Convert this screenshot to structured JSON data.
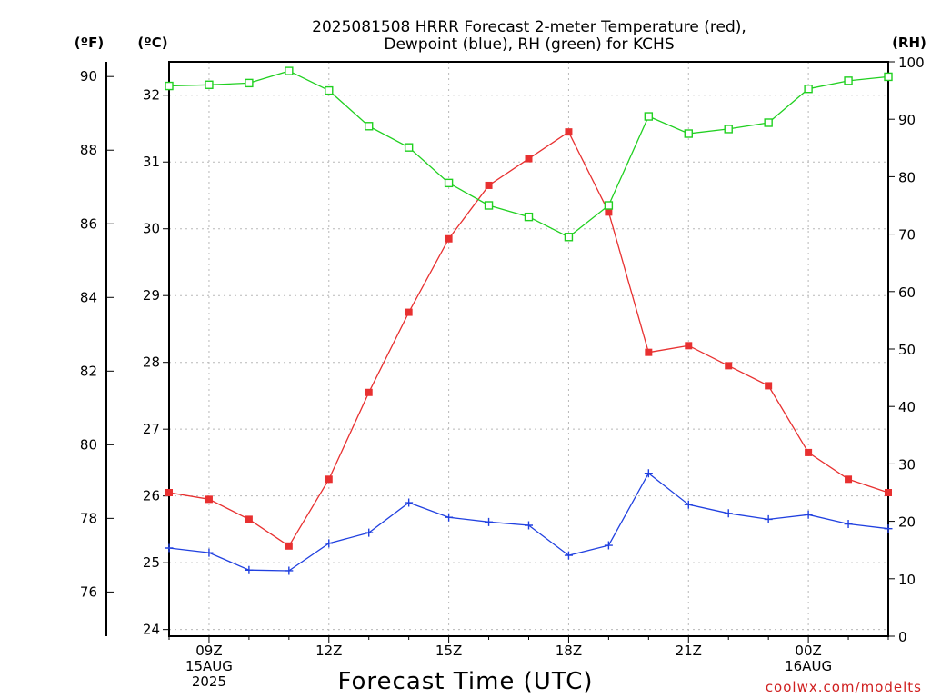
{
  "chart_data": {
    "type": "line",
    "title_lines": [
      "2025081508 HRRR Forecast 2-meter Temperature (red),",
      "Dewpoint (blue), RH (green) for KCHS"
    ],
    "xlabel": "Forecast Time (UTC)",
    "credit": "coolwx.com/modelts",
    "units": {
      "fahrenheit": "(ºF)",
      "celsius": "(ºC)",
      "rh": "(RH)"
    },
    "x": [
      "08Z",
      "09Z",
      "10Z",
      "11Z",
      "12Z",
      "13Z",
      "14Z",
      "15Z",
      "16Z",
      "17Z",
      "18Z",
      "19Z",
      "20Z",
      "21Z",
      "22Z",
      "23Z",
      "00Z",
      "01Z",
      "02Z"
    ],
    "x_tick_labels": [
      {
        "index": 1,
        "lines": [
          "09Z",
          "15AUG",
          "2025"
        ]
      },
      {
        "index": 4,
        "lines": [
          "12Z"
        ]
      },
      {
        "index": 7,
        "lines": [
          "15Z"
        ]
      },
      {
        "index": 10,
        "lines": [
          "18Z"
        ]
      },
      {
        "index": 13,
        "lines": [
          "21Z"
        ]
      },
      {
        "index": 16,
        "lines": [
          "00Z",
          "16AUG"
        ]
      }
    ],
    "y_left_outer": {
      "label": "(ºF)",
      "ticks": [
        "76",
        "78",
        "80",
        "82",
        "84",
        "86",
        "88",
        "90"
      ],
      "range": [
        74.8,
        90.4
      ]
    },
    "y_left_inner": {
      "label": "(ºC)",
      "ticks": [
        "24",
        "25",
        "26",
        "27",
        "28",
        "29",
        "30",
        "31",
        "32"
      ],
      "range": [
        23.9,
        32.5
      ]
    },
    "y_right": {
      "label": "(RH)",
      "ticks": [
        "0",
        "10",
        "20",
        "30",
        "40",
        "50",
        "60",
        "70",
        "80",
        "90",
        "100"
      ],
      "range": [
        0,
        100
      ]
    },
    "grid": true,
    "series": [
      {
        "name": "Temperature",
        "unit": "ºC",
        "axis": "celsius",
        "color": "#e83030",
        "marker": "filled-square",
        "values": [
          26.05,
          25.95,
          25.65,
          25.25,
          26.25,
          27.55,
          28.75,
          29.85,
          30.65,
          31.05,
          31.45,
          30.25,
          28.15,
          28.25,
          27.95,
          27.65,
          26.65,
          26.25,
          26.05
        ]
      },
      {
        "name": "Dewpoint",
        "unit": "ºC",
        "axis": "celsius",
        "color": "#2040e0",
        "marker": "plus",
        "values": [
          25.22,
          25.15,
          24.89,
          24.88,
          25.29,
          25.45,
          25.9,
          25.68,
          25.61,
          25.56,
          25.11,
          25.26,
          26.34,
          25.87,
          25.74,
          25.65,
          25.72,
          25.58,
          25.51
        ]
      },
      {
        "name": "RH",
        "unit": "%",
        "axis": "rh",
        "color": "#20d020",
        "marker": "open-square",
        "values": [
          95.8,
          96.0,
          96.3,
          98.4,
          95.0,
          88.8,
          85.1,
          78.9,
          75.0,
          73.0,
          69.5,
          75.0,
          90.5,
          87.5,
          88.3,
          89.4,
          95.3,
          96.7,
          97.4
        ]
      }
    ]
  }
}
